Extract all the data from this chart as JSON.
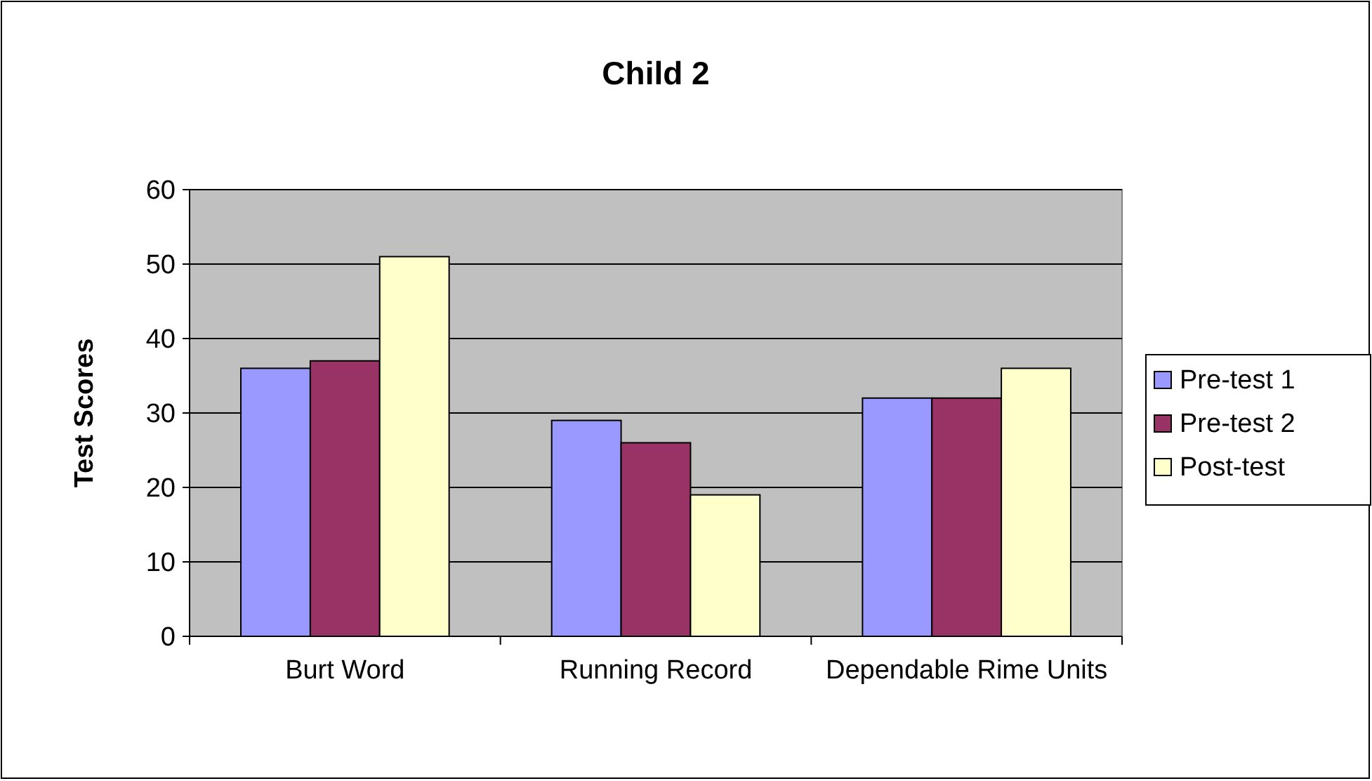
{
  "chart_data": {
    "type": "bar",
    "title": "Child 2",
    "ylabel": "Test Scores",
    "categories": [
      "Burt Word",
      "Running Record",
      "Dependable Rime Units"
    ],
    "series": [
      {
        "name": "Pre-test 1",
        "color": "#9999ff",
        "values": [
          36,
          29,
          32
        ]
      },
      {
        "name": "Pre-test 2",
        "color": "#993366",
        "values": [
          37,
          26,
          32
        ]
      },
      {
        "name": "Post-test",
        "color": "#ffffcc",
        "values": [
          51,
          19,
          36
        ]
      }
    ],
    "ylim": [
      0,
      60
    ],
    "yticks": [
      0,
      10,
      20,
      30,
      40,
      50,
      60
    ],
    "grid": "y",
    "legend": "right"
  }
}
